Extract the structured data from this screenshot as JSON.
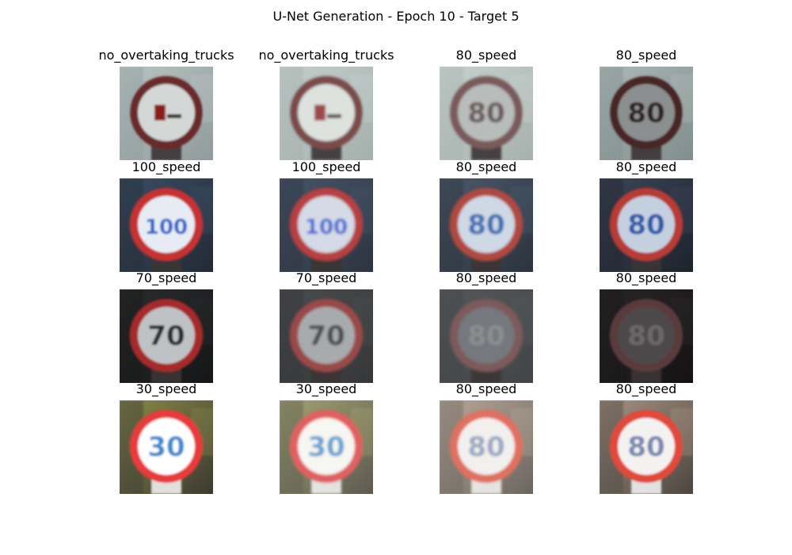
{
  "title": "U-Net Generation - Epoch 10 - Target 5",
  "rows": [
    {
      "sign": "round-sign-no-overtaking-trucks",
      "panels": [
        {
          "label": "no_overtaking_trucks",
          "legend": "truck",
          "bg": [
            "#b9c4c2",
            "#8f9c9b"
          ],
          "ring": "#6b2a2a",
          "face": "#d3d8d6",
          "glyph": "#3a2c2c",
          "glyph2": "#8c1f1f",
          "tint": 0.0
        },
        {
          "label": "no_overtaking_trucks",
          "legend": "truck",
          "bg": [
            "#c5cfcd",
            "#a4b0ad"
          ],
          "ring": "#7a4c4a",
          "face": "#dde2df",
          "glyph": "#5a5050",
          "glyph2": "#a04a48",
          "tint": 0.15
        },
        {
          "label": "80_speed",
          "legend": "80",
          "bg": [
            "#c8d1ce",
            "#a6b1ae"
          ],
          "ring": "#7a5a5a",
          "face": "#b8bcba",
          "glyph": "#6a5a5c",
          "glyph2": "#6a5a5c",
          "tint": 0.25
        },
        {
          "label": "80_speed",
          "legend": "80",
          "bg": [
            "#aeb9b8",
            "#7f8d8c"
          ],
          "ring": "#4a2525",
          "face": "#8c8f8f",
          "glyph": "#2d2424",
          "glyph2": "#2d2424",
          "tint": 0.1
        }
      ]
    },
    {
      "sign": "round-sign-100-speed",
      "panels": [
        {
          "label": "100_speed",
          "legend": "100",
          "bg": [
            "#3a4e66",
            "#232a34"
          ],
          "ring": "#c63030",
          "face": "#e7ecf4",
          "glyph": "#2b63c7",
          "glyph2": "#3a9a4c",
          "tint": 0.0
        },
        {
          "label": "100_speed",
          "legend": "100",
          "bg": [
            "#46566a",
            "#2e3440"
          ],
          "ring": "#b84040",
          "face": "#d4dae6",
          "glyph": "#4a6ad0",
          "glyph2": "#4a8a5c",
          "tint": 0.15
        },
        {
          "label": "80_speed",
          "legend": "80",
          "bg": [
            "#4a5a6c",
            "#2c333c"
          ],
          "ring": "#b04a40",
          "face": "#cfd9e6",
          "glyph": "#3a6ab0",
          "glyph2": "#3a6ab0",
          "tint": 0.2
        },
        {
          "label": "80_speed",
          "legend": "80",
          "bg": [
            "#3a4658",
            "#1e232b"
          ],
          "ring": "#b83a34",
          "face": "#c4d0e0",
          "glyph": "#2e5aa8",
          "glyph2": "#2e5aa8",
          "tint": 0.1
        }
      ]
    },
    {
      "sign": "round-sign-70-speed",
      "panels": [
        {
          "label": "70_speed",
          "legend": "70",
          "bg": [
            "#2a2c2e",
            "#151617"
          ],
          "ring": "#a62a2a",
          "face": "#bfc2c4",
          "glyph": "#2a2b2d",
          "glyph2": "#2a2b2d",
          "tint": 0.0
        },
        {
          "label": "70_speed",
          "legend": "70",
          "bg": [
            "#4a4c4e",
            "#353739"
          ],
          "ring": "#9a4a48",
          "face": "#a8abad",
          "glyph": "#4a4b4d",
          "glyph2": "#4a4b4d",
          "tint": 0.2
        },
        {
          "label": "80_speed",
          "legend": "80",
          "bg": [
            "#55585b",
            "#424447"
          ],
          "ring": "#7d5a5c",
          "face": "#75787b",
          "glyph": "#8c8f92",
          "glyph2": "#8c8f92",
          "tint": 0.3
        },
        {
          "label": "80_speed",
          "legend": "80",
          "bg": [
            "#2a2628",
            "#151213"
          ],
          "ring": "#5a3a3c",
          "face": "#4d4a4c",
          "glyph": "#6a6769",
          "glyph2": "#6a6769",
          "tint": 0.1
        }
      ]
    },
    {
      "sign": "round-sign-30-speed",
      "panels": [
        {
          "label": "30_speed",
          "legend": "30",
          "bg": [
            "#8a8a4a",
            "#3c3a30"
          ],
          "ring": "#e83a3a",
          "face": "#ffffff",
          "glyph": "#3a8ad0",
          "glyph2": "#e0c030",
          "tint": 0.0
        },
        {
          "label": "30_speed",
          "legend": "30",
          "bg": [
            "#a4a472",
            "#5c5a50"
          ],
          "ring": "#e06060",
          "face": "#f6f6f2",
          "glyph": "#6aa0d0",
          "glyph2": "#d8c060",
          "tint": 0.15
        },
        {
          "label": "80_speed",
          "legend": "80",
          "bg": [
            "#b8a898",
            "#6c6660"
          ],
          "ring": "#e07060",
          "face": "#f2f0ee",
          "glyph": "#9aa8c0",
          "glyph2": "#9aa8c0",
          "tint": 0.2
        },
        {
          "label": "80_speed",
          "legend": "80",
          "bg": [
            "#a89484",
            "#4c4640"
          ],
          "ring": "#e04a3a",
          "face": "#f4f2f0",
          "glyph": "#7a8ab0",
          "glyph2": "#7a8ab0",
          "tint": 0.1
        }
      ]
    }
  ]
}
